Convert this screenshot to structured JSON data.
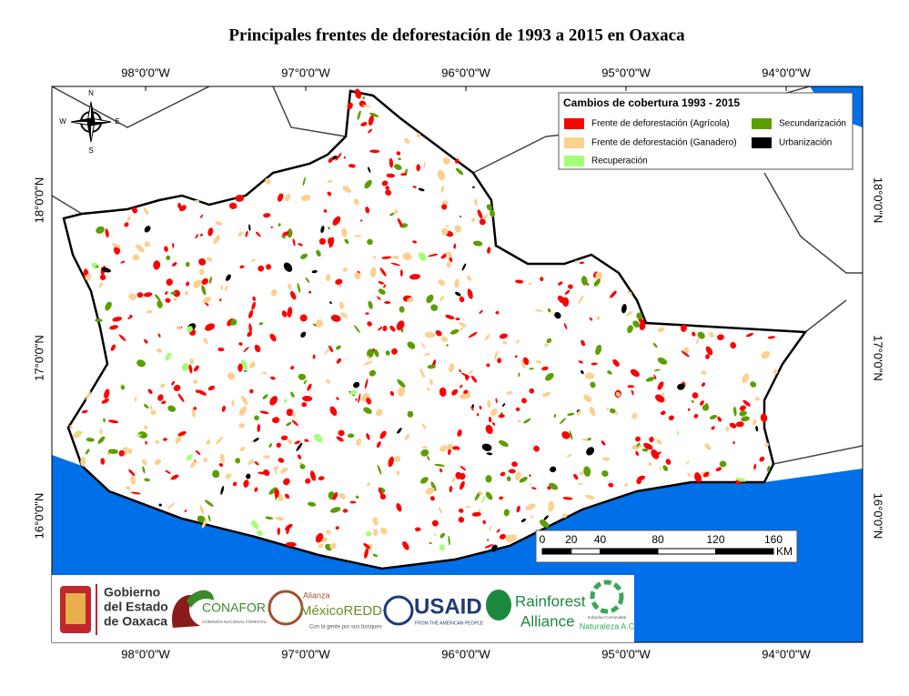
{
  "title": "Principales frentes de deforestación de 1993 a 2015 en Oaxaca",
  "graticule": {
    "longitudes": [
      "98°0'0\"W",
      "97°0'0\"W",
      "96°0'0\"W",
      "95°0'0\"W",
      "94°0'0\"W"
    ],
    "latitudes": [
      "18°0'0\"N",
      "17°0'0\"N",
      "16°0'0\"N"
    ]
  },
  "compass": {
    "north": "N",
    "south": "S",
    "east": "E",
    "west": "W"
  },
  "legend": {
    "title": "Cambios de cobertura 1993 - 2015",
    "items": [
      {
        "label": "Frente de deforestación (Agrícola)",
        "color": "#ff0000"
      },
      {
        "label": "Frente de deforestación (Ganadero)",
        "color": "#fcd08f"
      },
      {
        "label": "Recuperación",
        "color": "#a3ff73"
      },
      {
        "label": "Secundarización",
        "color": "#5c9e00"
      },
      {
        "label": "Urbanización",
        "color": "#000000"
      }
    ]
  },
  "scale_bar": {
    "ticks": [
      0,
      20,
      40,
      80,
      120,
      160
    ],
    "unit": "KM"
  },
  "logos": {
    "gobierno": [
      "Gobierno",
      "del Estado",
      "de Oaxaca"
    ],
    "conafor": {
      "name": "CONAFOR",
      "subtitle": "COMISIÓN NACIONAL FORESTAL"
    },
    "alianza": {
      "top": "Alianza",
      "name": "MéxicoREDD+",
      "subtitle": "Con la gente por sus bosques"
    },
    "usaid": {
      "name": "USAID",
      "subtitle": "FROM THE AMERICAN PEOPLE"
    },
    "rainforest": [
      "Rainforest",
      "Alliance"
    ],
    "naturaleza": {
      "top": "Individuo-Comunidad",
      "name": "Naturaleza A.C"
    }
  }
}
